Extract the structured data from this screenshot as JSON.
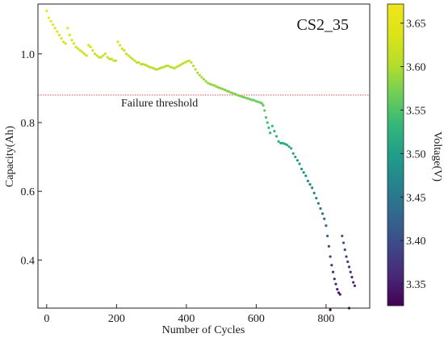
{
  "chart_data": {
    "type": "scatter",
    "title": "",
    "panel_label": "CS2_35",
    "xlabel": "Number of Cycles",
    "ylabel": "Capacity(Ah)",
    "xlim": [
      -25,
      925
    ],
    "ylim": [
      0.26,
      1.145
    ],
    "xticks": [
      0,
      200,
      400,
      600,
      800
    ],
    "yticks": [
      0.4,
      0.6,
      0.8,
      1.0
    ],
    "ytick_labels": [
      "0.4",
      "0.6",
      "0.8",
      "1.0"
    ],
    "grid": false,
    "colorbar": {
      "label": "Voltage(V)",
      "range": [
        3.325,
        3.672
      ],
      "ticks": [
        3.35,
        3.4,
        3.45,
        3.5,
        3.55,
        3.6,
        3.65
      ],
      "tick_labels": [
        "3.35",
        "3.40",
        "3.45",
        "3.50",
        "3.55",
        "3.60",
        "3.65"
      ],
      "colormap": "viridis"
    },
    "threshold": {
      "y": 0.88,
      "label": "Failure threshold",
      "color": "#e05050",
      "style": "dotted"
    },
    "series": [
      {
        "points": [
          [
            0,
            1.125
          ],
          [
            6,
            1.105
          ],
          [
            12,
            1.095
          ],
          [
            18,
            1.085
          ],
          [
            24,
            1.075
          ],
          [
            30,
            1.065
          ],
          [
            36,
            1.055
          ],
          [
            42,
            1.045
          ],
          [
            48,
            1.035
          ],
          [
            54,
            1.03
          ],
          [
            60,
            1.075
          ],
          [
            66,
            1.055
          ],
          [
            72,
            1.04
          ],
          [
            78,
            1.03
          ],
          [
            84,
            1.02
          ],
          [
            90,
            1.015
          ],
          [
            96,
            1.01
          ],
          [
            102,
            1.005
          ],
          [
            108,
            1.0
          ],
          [
            114,
            0.995
          ],
          [
            120,
            1.025
          ],
          [
            126,
            1.02
          ],
          [
            132,
            1.01
          ],
          [
            138,
            1.0
          ],
          [
            144,
            0.995
          ],
          [
            150,
            0.99
          ],
          [
            156,
            0.99
          ],
          [
            162,
            0.995
          ],
          [
            168,
            1.0
          ],
          [
            174,
            0.99
          ],
          [
            180,
            0.985
          ],
          [
            186,
            0.985
          ],
          [
            192,
            0.98
          ],
          [
            198,
            0.98
          ],
          [
            204,
            1.035
          ],
          [
            210,
            1.025
          ],
          [
            216,
            1.015
          ],
          [
            222,
            1.01
          ],
          [
            228,
            1.0
          ],
          [
            234,
            0.995
          ],
          [
            240,
            0.99
          ],
          [
            246,
            0.985
          ],
          [
            252,
            0.98
          ],
          [
            258,
            0.975
          ],
          [
            264,
            0.975
          ],
          [
            270,
            0.97
          ],
          [
            276,
            0.97
          ],
          [
            282,
            0.968
          ],
          [
            288,
            0.965
          ],
          [
            294,
            0.962
          ],
          [
            300,
            0.96
          ],
          [
            306,
            0.958
          ],
          [
            312,
            0.955
          ],
          [
            318,
            0.955
          ],
          [
            324,
            0.958
          ],
          [
            330,
            0.96
          ],
          [
            336,
            0.962
          ],
          [
            342,
            0.965
          ],
          [
            348,
            0.965
          ],
          [
            354,
            0.962
          ],
          [
            360,
            0.96
          ],
          [
            366,
            0.958
          ],
          [
            372,
            0.962
          ],
          [
            378,
            0.965
          ],
          [
            384,
            0.968
          ],
          [
            390,
            0.972
          ],
          [
            396,
            0.975
          ],
          [
            402,
            0.978
          ],
          [
            408,
            0.98
          ],
          [
            414,
            0.975
          ],
          [
            420,
            0.965
          ],
          [
            426,
            0.955
          ],
          [
            432,
            0.945
          ],
          [
            438,
            0.938
          ],
          [
            444,
            0.932
          ],
          [
            450,
            0.926
          ],
          [
            456,
            0.92
          ],
          [
            462,
            0.915
          ],
          [
            468,
            0.912
          ],
          [
            474,
            0.91
          ],
          [
            480,
            0.908
          ],
          [
            486,
            0.905
          ],
          [
            492,
            0.902
          ],
          [
            498,
            0.9
          ],
          [
            504,
            0.898
          ],
          [
            510,
            0.895
          ],
          [
            516,
            0.892
          ],
          [
            522,
            0.89
          ],
          [
            528,
            0.887
          ],
          [
            534,
            0.885
          ],
          [
            540,
            0.883
          ],
          [
            546,
            0.88
          ],
          [
            552,
            0.878
          ],
          [
            558,
            0.876
          ],
          [
            564,
            0.874
          ],
          [
            570,
            0.872
          ],
          [
            576,
            0.87
          ],
          [
            582,
            0.868
          ],
          [
            588,
            0.866
          ],
          [
            594,
            0.865
          ],
          [
            600,
            0.862
          ],
          [
            606,
            0.86
          ],
          [
            612,
            0.858
          ],
          [
            616,
            0.856
          ],
          [
            620,
            0.85
          ],
          [
            624,
            0.835
          ],
          [
            628,
            0.815
          ],
          [
            632,
            0.8
          ],
          [
            636,
            0.785
          ],
          [
            640,
            0.77
          ],
          [
            646,
            0.79
          ],
          [
            652,
            0.775
          ],
          [
            658,
            0.76
          ],
          [
            664,
            0.745
          ],
          [
            670,
            0.74
          ],
          [
            676,
            0.74
          ],
          [
            682,
            0.738
          ],
          [
            688,
            0.735
          ],
          [
            694,
            0.73
          ],
          [
            700,
            0.725
          ],
          [
            706,
            0.71
          ],
          [
            712,
            0.7
          ],
          [
            718,
            0.69
          ],
          [
            724,
            0.68
          ],
          [
            730,
            0.665
          ],
          [
            736,
            0.655
          ],
          [
            742,
            0.645
          ],
          [
            748,
            0.63
          ],
          [
            754,
            0.62
          ],
          [
            760,
            0.61
          ],
          [
            766,
            0.595
          ],
          [
            772,
            0.58
          ],
          [
            778,
            0.565
          ],
          [
            784,
            0.55
          ],
          [
            790,
            0.535
          ],
          [
            795,
            0.52
          ],
          [
            800,
            0.5
          ],
          [
            804,
            0.47
          ],
          [
            808,
            0.44
          ],
          [
            812,
            0.41
          ],
          [
            816,
            0.385
          ],
          [
            820,
            0.365
          ],
          [
            824,
            0.345
          ],
          [
            828,
            0.33
          ],
          [
            832,
            0.315
          ],
          [
            836,
            0.305
          ],
          [
            840,
            0.3
          ],
          [
            846,
            0.47
          ],
          [
            850,
            0.45
          ],
          [
            854,
            0.43
          ],
          [
            858,
            0.41
          ],
          [
            862,
            0.395
          ],
          [
            866,
            0.38
          ],
          [
            870,
            0.365
          ],
          [
            874,
            0.35
          ],
          [
            878,
            0.335
          ],
          [
            882,
            0.325
          ],
          [
            812,
            0.255
          ],
          [
            866,
            0.26
          ]
        ]
      }
    ]
  }
}
